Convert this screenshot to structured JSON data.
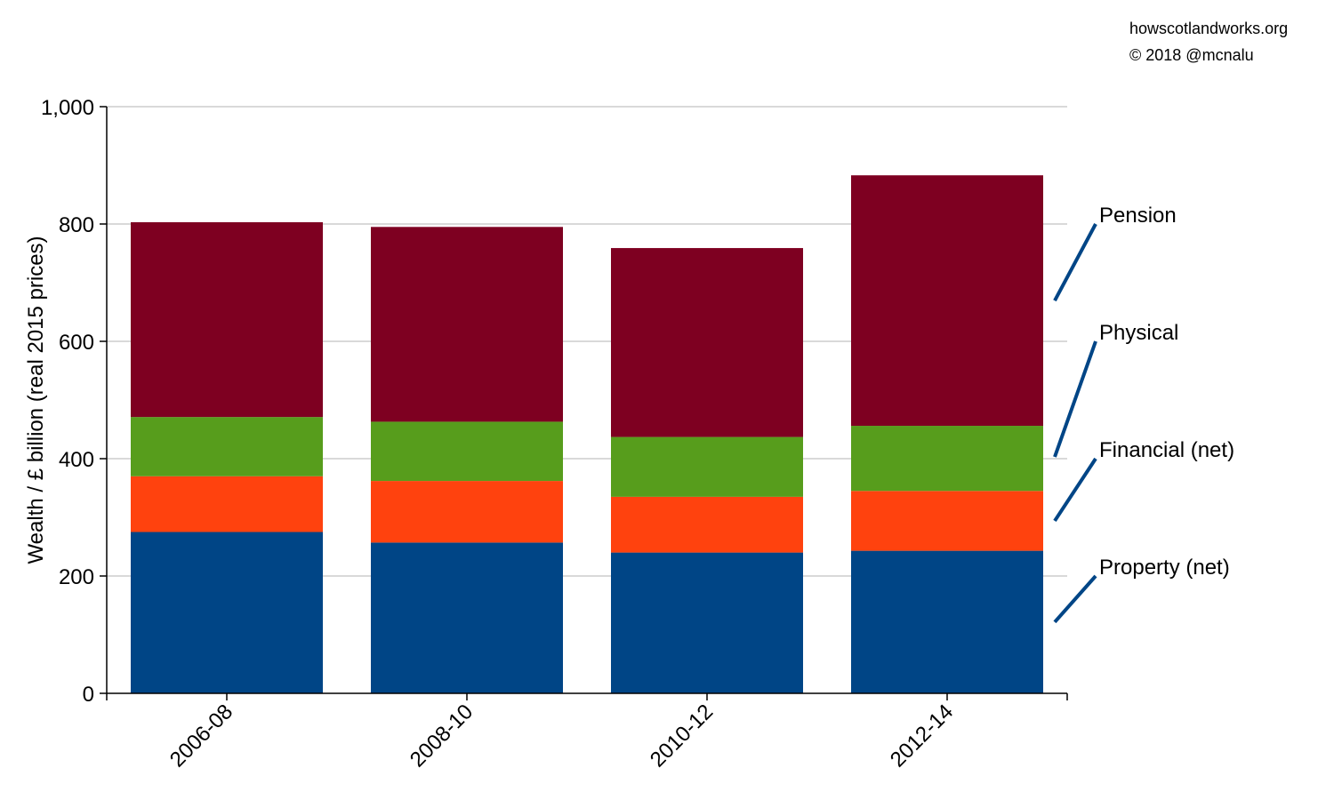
{
  "credits": {
    "site": "howscotlandworks.org",
    "copyright": "© 2018  @mcnalu"
  },
  "chart_data": {
    "type": "bar",
    "stacked": true,
    "title": "",
    "xlabel": "",
    "ylabel": "Wealth / £ billion (real 2015 prices)",
    "ylim": [
      0,
      1000
    ],
    "yticks": [
      0,
      200,
      400,
      600,
      800,
      1000
    ],
    "ytick_labels": [
      "0",
      "200",
      "400",
      "600",
      "800",
      "1,000"
    ],
    "grid": true,
    "legend_placement": "right",
    "categories": [
      "2006-08",
      "2008-10",
      "2010-12",
      "2012-14"
    ],
    "series": [
      {
        "name": "Property (net)",
        "color": "#004586",
        "values": [
          275,
          257,
          240,
          243
        ]
      },
      {
        "name": "Financial (net)",
        "color": "#ff420e",
        "values": [
          95,
          105,
          95,
          102
        ]
      },
      {
        "name": "Physical",
        "color": "#579d1c",
        "values": [
          101,
          101,
          102,
          111
        ]
      },
      {
        "name": "Pension",
        "color": "#7e0021",
        "values": [
          332,
          332,
          322,
          427
        ]
      }
    ]
  }
}
